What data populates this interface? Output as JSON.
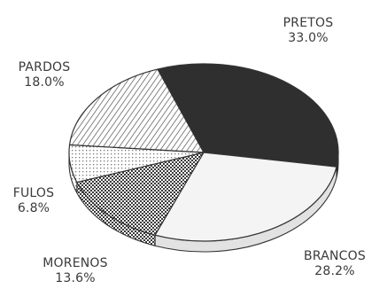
{
  "chart_data": {
    "type": "pie",
    "style": "3d",
    "title": "",
    "slices": [
      {
        "name": "PRETOS",
        "label": "PRETOS",
        "value_text": "33.0%",
        "value": 33.0,
        "color": "#2f2f2f",
        "fill": "solid-dark"
      },
      {
        "name": "BRANCOS",
        "label": "BRANCOS",
        "value_text": "28.2%",
        "value": 28.2,
        "color": "#f4f4f4",
        "fill": "solid-light"
      },
      {
        "name": "MORENOS",
        "label": "MORENOS",
        "value_text": "13.6%",
        "value": 13.6,
        "color": "#555555",
        "fill": "crosshatch"
      },
      {
        "name": "FULOS",
        "label": "FULOS",
        "value_text": "6.8%",
        "value": 6.8,
        "color": "#888888",
        "fill": "fine-dots"
      },
      {
        "name": "PARDOS",
        "label": "PARDOS",
        "value_text": "18.0%",
        "value": 18.0,
        "color": "#555555",
        "fill": "diagonal-lines"
      }
    ]
  }
}
